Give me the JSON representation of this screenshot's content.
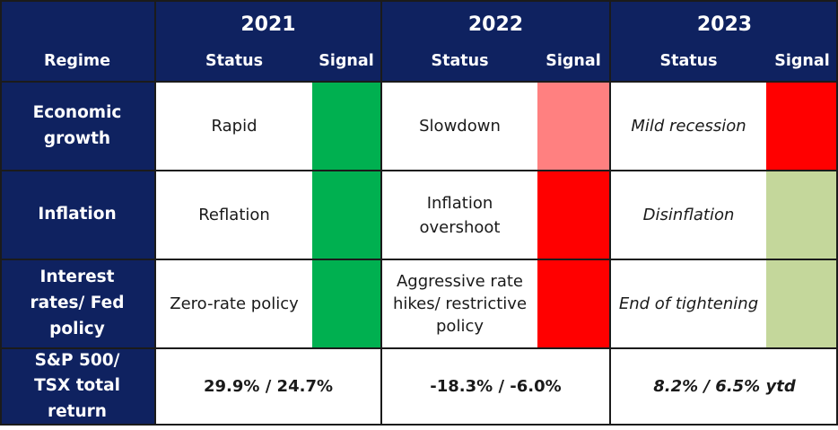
{
  "header": {
    "regime_label": "Regime",
    "years": [
      "2021",
      "2022",
      "2023"
    ],
    "status_label": "Status",
    "signal_label": "Signal"
  },
  "rows": [
    {
      "label": "Economic growth",
      "cells": [
        {
          "status": "Rapid",
          "signal_color": "#00b050"
        },
        {
          "status": "Slowdown",
          "signal_color": "#ff8080"
        },
        {
          "status": "Mild recession",
          "signal_color": "#ff0000"
        }
      ]
    },
    {
      "label": "Inflation",
      "cells": [
        {
          "status": "Reflation",
          "signal_color": "#00b050"
        },
        {
          "status": "Inflation overshoot",
          "signal_color": "#ff0000"
        },
        {
          "status": "Disinflation",
          "signal_color": "#c4d79b"
        }
      ]
    },
    {
      "label": "Interest rates/ Fed policy",
      "cells": [
        {
          "status": "Zero-rate policy",
          "signal_color": "#00b050"
        },
        {
          "status": "Aggressive rate hikes/ restrictive policy",
          "signal_color": "#ff0000"
        },
        {
          "status": "End of tightening",
          "signal_color": "#c4d79b"
        }
      ]
    }
  ],
  "returns": {
    "label": "S&P 500/ TSX total return",
    "values": [
      "29.9% / 24.7%",
      "-18.3% / -6.0%",
      "8.2% / 6.5% ytd"
    ]
  },
  "colors": {
    "navy": "#0f2260",
    "green": "#00b050",
    "light_red": "#ff8080",
    "red": "#ff0000",
    "light_green": "#c4d79b"
  }
}
